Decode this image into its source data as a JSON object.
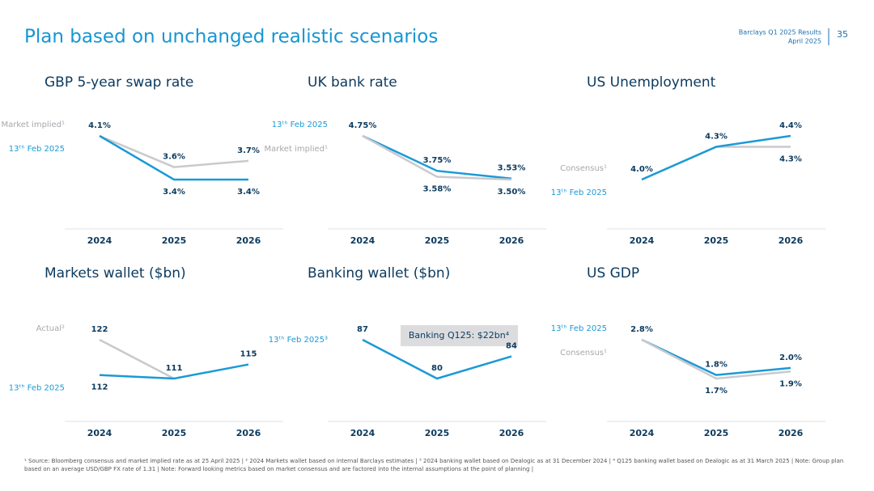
{
  "header": {
    "title": "Plan based on unchanged realistic scenarios",
    "report": "Barclays Q1 2025 Results",
    "date": "April 2025",
    "page": "35"
  },
  "chart_data": [
    {
      "type": "line",
      "title": "GBP 5-year swap rate",
      "categories": [
        "2024",
        "2025",
        "2026"
      ],
      "series": [
        {
          "name": "Market implied¹",
          "color": "#c9c9ce",
          "values": [
            4.1,
            3.6,
            3.7
          ],
          "value_labels": [
            null,
            "3.6%",
            "3.7%"
          ]
        },
        {
          "name": "13ᵗʰ Feb 2025",
          "color": "#1a9ad6",
          "values": [
            4.1,
            3.4,
            3.4
          ],
          "value_labels": [
            "4.1%",
            "3.4%",
            "3.4%"
          ]
        }
      ]
    },
    {
      "type": "line",
      "title": "UK bank rate",
      "categories": [
        "2024",
        "2025",
        "2026"
      ],
      "series": [
        {
          "name": "13ᵗʰ Feb 2025",
          "color": "#1a9ad6",
          "values": [
            4.75,
            3.75,
            3.53
          ],
          "value_labels": [
            "4.75%",
            "3.75%",
            "3.53%"
          ]
        },
        {
          "name": "Market implied¹",
          "color": "#c9c9ce",
          "values": [
            4.75,
            3.58,
            3.5
          ],
          "value_labels": [
            null,
            "3.58%",
            "3.50%"
          ]
        }
      ]
    },
    {
      "type": "line",
      "title": "US Unemployment",
      "categories": [
        "2024",
        "2025",
        "2026"
      ],
      "series": [
        {
          "name": "Consensus¹",
          "color": "#c9c9ce",
          "values": [
            4.0,
            4.3,
            4.3
          ],
          "value_labels": [
            null,
            null,
            "4.3%"
          ]
        },
        {
          "name": "13ᵗʰ Feb 2025",
          "color": "#1a9ad6",
          "values": [
            4.0,
            4.3,
            4.4
          ],
          "value_labels": [
            "4.0%",
            "4.3%",
            "4.4%"
          ]
        }
      ]
    },
    {
      "type": "line",
      "title": "Markets wallet ($bn)",
      "categories": [
        "2024",
        "2025",
        "2026"
      ],
      "series": [
        {
          "name": "Actual²",
          "color": "#c9c9ce",
          "values": [
            122,
            111,
            null
          ],
          "value_labels": [
            "122",
            null,
            null
          ]
        },
        {
          "name": "13ᵗʰ Feb 2025",
          "color": "#1a9ad6",
          "values": [
            112,
            111,
            115
          ],
          "value_labels": [
            "112",
            "111",
            "115"
          ]
        }
      ]
    },
    {
      "type": "line",
      "title": "Banking wallet ($bn)",
      "categories": [
        "2024",
        "2025",
        "2026"
      ],
      "annotation": "Banking Q125: $22bn⁴",
      "series": [
        {
          "name": "13ᵗʰ Feb 2025³",
          "color": "#1a9ad6",
          "values": [
            87,
            80,
            84
          ],
          "value_labels": [
            "87",
            "80",
            "84"
          ]
        }
      ]
    },
    {
      "type": "line",
      "title": "US GDP",
      "categories": [
        "2024",
        "2025",
        "2026"
      ],
      "series": [
        {
          "name": "13ᵗʰ Feb 2025",
          "color": "#1a9ad6",
          "values": [
            2.8,
            1.8,
            2.0
          ],
          "value_labels": [
            "2.8%",
            "1.8%",
            "2.0%"
          ]
        },
        {
          "name": "Consensus¹",
          "color": "#c9c9ce",
          "values": [
            2.8,
            1.7,
            1.9
          ],
          "value_labels": [
            null,
            "1.7%",
            "1.9%"
          ]
        }
      ]
    }
  ],
  "footnote": "¹ Source: Bloomberg consensus and market implied rate as at 25 April 2025 | ² 2024 Markets wallet based on internal Barclays estimates | ³ 2024 banking wallet based on Dealogic as at 31 December 2024 | ⁴ Q125 banking wallet based on Dealogic as at 31 March 2025 | Note: Group plan based on an average USD/GBP FX rate of 1.31 | Note: Forward looking metrics based on market consensus and are factored into the internal assumptions at the point of planning |"
}
